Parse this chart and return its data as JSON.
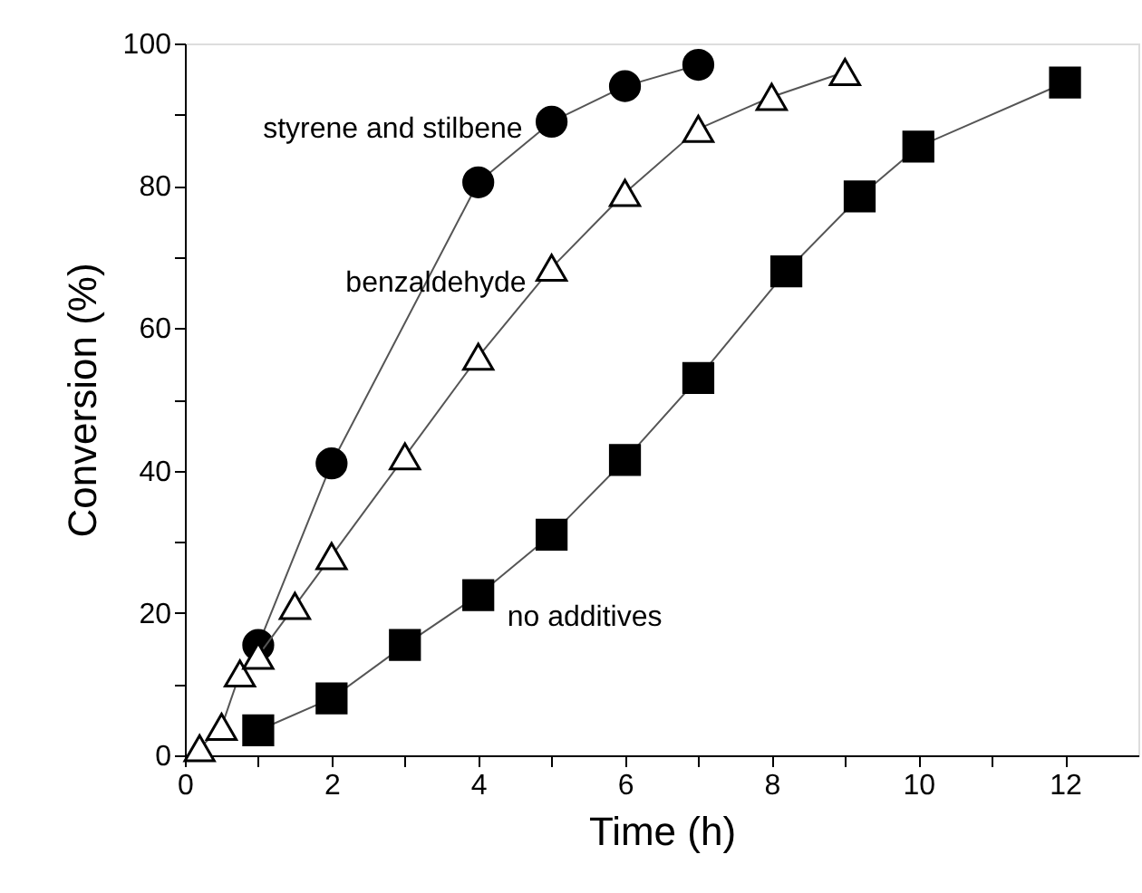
{
  "chart_data": {
    "type": "line",
    "xlabel": "Time (h)",
    "ylabel": "Conversion (%)",
    "xlim": [
      0,
      13
    ],
    "ylim": [
      0,
      100
    ],
    "xticks": [
      0,
      {
        "value": 1,
        "label": null
      },
      2,
      {
        "value": 3,
        "label": null
      },
      4,
      {
        "value": 5,
        "label": null
      },
      6,
      {
        "value": 7,
        "label": null
      },
      8,
      {
        "value": 9,
        "label": null
      },
      10,
      {
        "value": 11,
        "label": null
      },
      12
    ],
    "yticks": [
      0,
      {
        "value": 10,
        "label": null
      },
      20,
      {
        "value": 30,
        "label": null
      },
      40,
      {
        "value": 50,
        "label": null
      },
      60,
      {
        "value": 70,
        "label": null
      },
      80,
      {
        "value": 90,
        "label": null
      },
      100
    ],
    "grid": false,
    "series": [
      {
        "color": "#000000",
        "marker": "circle",
        "x": [
          1,
          2,
          4,
          5,
          6,
          7
        ],
        "values": [
          15.5,
          41,
          80.5,
          89,
          94,
          97
        ]
      },
      {
        "color": "#000000",
        "marker": "triangle",
        "x": [
          0.2,
          0.5,
          0.75,
          1,
          1.5,
          2,
          3,
          4,
          5,
          6,
          7,
          8,
          9
        ],
        "values": [
          1,
          4,
          11.5,
          14,
          21,
          28,
          42,
          56,
          68.5,
          79,
          88,
          92.5,
          96
        ]
      },
      {
        "color": "#000000",
        "marker": "square",
        "x": [
          1,
          2,
          3,
          4,
          5,
          6,
          7,
          8.2,
          9.2,
          10,
          12
        ],
        "values": [
          3.5,
          8,
          15.5,
          22.5,
          31,
          41.5,
          53,
          68,
          78.5,
          85.5,
          94.5
        ]
      }
    ],
    "annotations": [
      "styrene and stilbene",
      "benzaldehyde",
      "no additives"
    ]
  }
}
